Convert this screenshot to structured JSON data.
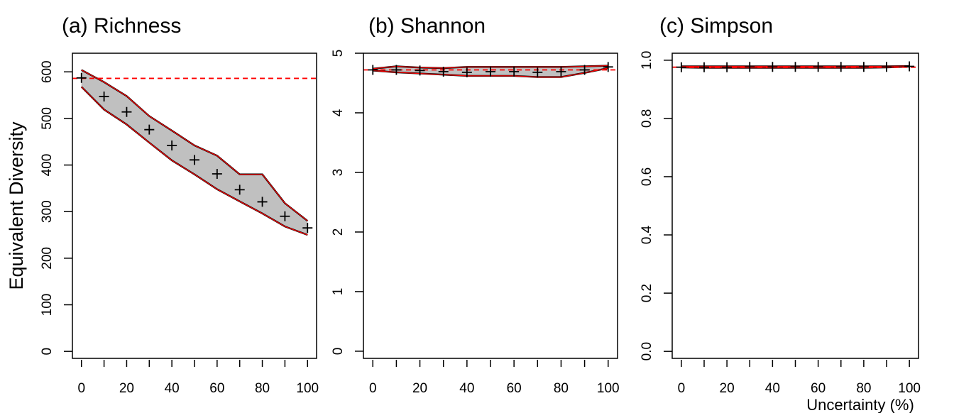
{
  "figure": {
    "ylabel": "Equivalent Diversity",
    "xlabel": "Uncertainty (%)"
  },
  "chart_data": [
    {
      "type": "area",
      "title": "(a) Richness",
      "xlabel": "Uncertainty (%)",
      "ylabel": "Equivalent Diversity",
      "xlim": [
        -4,
        104
      ],
      "ylim": [
        -15,
        640
      ],
      "x": [
        0,
        10,
        20,
        30,
        40,
        50,
        60,
        70,
        80,
        90,
        100
      ],
      "series": [
        {
          "role": "upper",
          "values": [
            604,
            578,
            548,
            505,
            474,
            442,
            420,
            380,
            380,
            318,
            280
          ]
        },
        {
          "role": "lower",
          "values": [
            568,
            519,
            487,
            448,
            410,
            380,
            348,
            322,
            296,
            268,
            250
          ]
        },
        {
          "role": "points",
          "values": [
            587,
            547,
            514,
            476,
            442,
            411,
            381,
            347,
            321,
            290,
            265
          ]
        }
      ],
      "reference_line": 586,
      "xticks": [
        0,
        20,
        40,
        60,
        80,
        100
      ],
      "yticks": [
        0,
        100,
        200,
        300,
        400,
        500,
        600
      ],
      "grid": false,
      "colors": {
        "band": "#c0c0c0",
        "edge": "#ff0000",
        "reference": "#ff0000",
        "points": "#000000"
      }
    },
    {
      "type": "area",
      "title": "(b) Shannon",
      "xlim": [
        -4,
        104
      ],
      "ylim": [
        -0.12,
        5.0
      ],
      "x": [
        0,
        10,
        20,
        30,
        40,
        50,
        60,
        70,
        80,
        90,
        100
      ],
      "series": [
        {
          "role": "upper",
          "values": [
            4.74,
            4.78,
            4.76,
            4.75,
            4.77,
            4.77,
            4.77,
            4.77,
            4.77,
            4.78,
            4.79
          ]
        },
        {
          "role": "lower",
          "values": [
            4.71,
            4.68,
            4.66,
            4.64,
            4.62,
            4.62,
            4.62,
            4.6,
            4.6,
            4.67,
            4.75
          ]
        },
        {
          "role": "points",
          "values": [
            4.72,
            4.72,
            4.71,
            4.69,
            4.68,
            4.69,
            4.69,
            4.68,
            4.69,
            4.72,
            4.77
          ]
        }
      ],
      "reference_line": 4.72,
      "xticks": [
        0,
        20,
        40,
        60,
        80,
        100
      ],
      "yticks": [
        0,
        1,
        2,
        3,
        4,
        5
      ],
      "grid": false,
      "colors": {
        "band": "#c0c0c0",
        "edge": "#ff0000",
        "reference": "#ff0000",
        "points": "#000000"
      }
    },
    {
      "type": "area",
      "title": "(c) Simpson",
      "xlabel": "Uncertainty (%)",
      "xlim": [
        -4,
        104
      ],
      "ylim": [
        -0.024,
        1.024
      ],
      "x": [
        0,
        10,
        20,
        30,
        40,
        50,
        60,
        70,
        80,
        90,
        100
      ],
      "series": [
        {
          "role": "upper",
          "values": [
            0.979,
            0.979,
            0.979,
            0.979,
            0.979,
            0.979,
            0.979,
            0.979,
            0.979,
            0.979,
            0.98
          ]
        },
        {
          "role": "lower",
          "values": [
            0.975,
            0.974,
            0.974,
            0.974,
            0.974,
            0.974,
            0.974,
            0.974,
            0.974,
            0.975,
            0.978
          ]
        },
        {
          "role": "points",
          "values": [
            0.976,
            0.976,
            0.976,
            0.977,
            0.977,
            0.977,
            0.977,
            0.977,
            0.977,
            0.977,
            0.979
          ]
        }
      ],
      "reference_line": 0.976,
      "xticks": [
        0,
        20,
        40,
        60,
        80,
        100
      ],
      "yticks": [
        "0.0",
        "0.2",
        "0.4",
        "0.6",
        "0.8",
        "1.0"
      ],
      "grid": false,
      "colors": {
        "band": "#c0c0c0",
        "edge": "#ff0000",
        "reference": "#ff0000",
        "points": "#000000"
      }
    }
  ]
}
